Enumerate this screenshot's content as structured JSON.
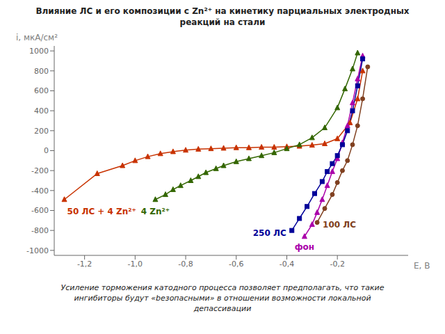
{
  "chart_data": {
    "type": "line",
    "title": "Влияние ЛС и его композиции с Zn²⁺ на кинетику парциальных электродных\nреакций на стали",
    "xlabel": "E, В",
    "ylabel": "i, мкА/см²",
    "annotations": [
      "Усиление торможения катодного процесса позволяет предполагать, что такие\nингибиторы будут «bезопасными» в отношении возможности локальной\nдепассивации"
    ],
    "xlim": [
      -1.32,
      0.08
    ],
    "ylim": [
      -1050,
      1050
    ],
    "xticks": [
      {
        "value": -1.2,
        "label": "-1,2"
      },
      {
        "value": -1.0,
        "label": "-1,0"
      },
      {
        "value": -0.8,
        "label": "-0,8"
      },
      {
        "value": -0.6,
        "label": "-0,6"
      },
      {
        "value": -0.4,
        "label": "-0,4"
      },
      {
        "value": -0.2,
        "label": "-0,2"
      }
    ],
    "yticks": [
      -1000,
      -800,
      -600,
      -400,
      -200,
      0,
      200,
      400,
      600,
      800,
      1000
    ],
    "series": [
      {
        "name": "50 ЛС + 4 Zn²⁺",
        "color": "#c83200",
        "marker": "triangle",
        "x": [
          -1.28,
          -1.15,
          -1.05,
          -1.0,
          -0.95,
          -0.9,
          -0.85,
          -0.8,
          -0.75,
          -0.7,
          -0.65,
          -0.6,
          -0.55,
          -0.5,
          -0.45,
          -0.4,
          -0.35,
          -0.3,
          -0.25,
          -0.2,
          -0.15,
          -0.12,
          -0.1
        ],
        "values": [
          -490,
          -230,
          -150,
          -100,
          -60,
          -30,
          -10,
          5,
          15,
          20,
          25,
          30,
          30,
          35,
          35,
          40,
          45,
          55,
          70,
          120,
          280,
          520,
          800
        ]
      },
      {
        "name": "4 Zn²⁺",
        "color": "#336600",
        "marker": "triangle",
        "x": [
          -0.92,
          -0.88,
          -0.85,
          -0.82,
          -0.78,
          -0.75,
          -0.72,
          -0.68,
          -0.65,
          -0.6,
          -0.55,
          -0.5,
          -0.45,
          -0.4,
          -0.35,
          -0.3,
          -0.25,
          -0.2,
          -0.17,
          -0.14,
          -0.12
        ],
        "values": [
          -490,
          -440,
          -390,
          -350,
          -300,
          -260,
          -220,
          -180,
          -150,
          -110,
          -80,
          -50,
          -20,
          20,
          60,
          130,
          230,
          430,
          620,
          820,
          980
        ]
      },
      {
        "name": "фон",
        "color": "#aa00aa",
        "marker": "triangle",
        "x": [
          -0.33,
          -0.3,
          -0.28,
          -0.26,
          -0.24,
          -0.22,
          -0.2,
          -0.18,
          -0.16,
          -0.14,
          -0.12,
          -0.1
        ],
        "values": [
          -860,
          -740,
          -620,
          -490,
          -350,
          -210,
          -80,
          80,
          250,
          480,
          720,
          950
        ]
      },
      {
        "name": "250 ЛС",
        "color": "#000099",
        "marker": "square",
        "x": [
          -0.38,
          -0.35,
          -0.32,
          -0.29,
          -0.26,
          -0.24,
          -0.22,
          -0.2,
          -0.18,
          -0.16,
          -0.14,
          -0.12,
          -0.1
        ],
        "values": [
          -800,
          -680,
          -560,
          -430,
          -310,
          -210,
          -130,
          -50,
          60,
          200,
          400,
          650,
          920
        ]
      },
      {
        "name": "100 ЛС",
        "color": "#804020",
        "marker": "circle",
        "x": [
          -0.28,
          -0.25,
          -0.22,
          -0.2,
          -0.18,
          -0.16,
          -0.14,
          -0.12,
          -0.1,
          -0.08
        ],
        "values": [
          -720,
          -580,
          -440,
          -320,
          -200,
          -100,
          60,
          250,
          520,
          840
        ]
      }
    ]
  }
}
